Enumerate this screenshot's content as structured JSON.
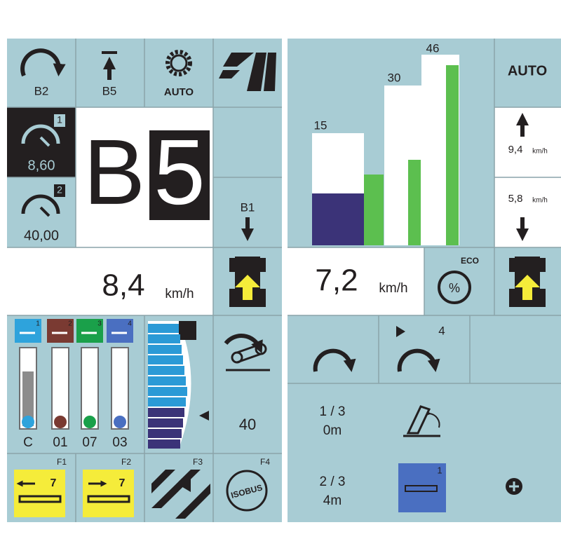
{
  "left_panel": {
    "top_buttons": [
      {
        "label": "B2"
      },
      {
        "label": "B5"
      },
      {
        "label": "AUTO"
      }
    ],
    "gauges": [
      {
        "index": "1",
        "value": "8,60"
      },
      {
        "index": "2",
        "value": "40,00"
      }
    ],
    "gear": {
      "letter": "B",
      "number": "5"
    },
    "gear_down": "B1",
    "speed": {
      "value": "8,4",
      "unit": "km/h"
    },
    "valves": [
      {
        "index": "1",
        "label": "C"
      },
      {
        "index": "2",
        "label": "01"
      },
      {
        "index": "3",
        "label": "07"
      },
      {
        "index": "4",
        "label": "03"
      }
    ],
    "pto_value": "40",
    "function_keys": [
      {
        "key": "F1",
        "value": "7"
      },
      {
        "key": "F2",
        "value": "7"
      },
      {
        "key": "F3"
      },
      {
        "key": "F4",
        "label": "ISOBUS"
      }
    ]
  },
  "right_panel": {
    "bar_labels": [
      "15",
      "30",
      "46"
    ],
    "auto": "AUTO",
    "speed_up": {
      "value": "9,4",
      "unit": "km/h"
    },
    "speed_down": {
      "value": "5,8",
      "unit": "km/h"
    },
    "speed": {
      "value": "7,2",
      "unit": "km/h"
    },
    "eco": "ECO",
    "eco_symbol": "%",
    "sequence_step": "4",
    "sequences": [
      {
        "step": "1 / 3",
        "distance": "0m"
      },
      {
        "step": "2 / 3",
        "distance": "4m"
      }
    ],
    "valve_index": "1"
  }
}
